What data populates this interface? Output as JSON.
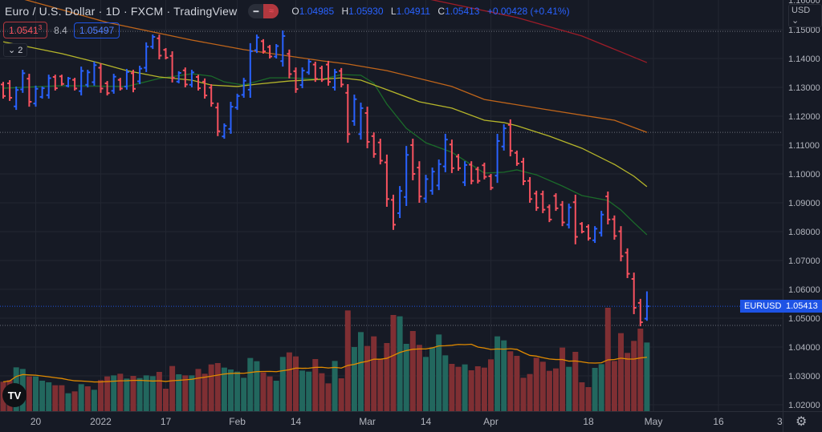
{
  "header": {
    "symbol_title": "Euro / U.S. Dollar · 1D · FXCM · TradingView",
    "toggle_left_icon": "minus-icon",
    "toggle_right_icon": "approx-icon",
    "ohlc": {
      "o_label": "O",
      "o": "1.04985",
      "h_label": "H",
      "h": "1.05930",
      "l_label": "L",
      "l": "1.04911",
      "c_label": "C",
      "c": "1.05413",
      "change": "+0.00428 (+0.41%)"
    }
  },
  "trade": {
    "bid": "1.0541",
    "bid_pip": "3",
    "spread": "8.4",
    "ask": "1.05497"
  },
  "indicators_toggle": {
    "icon": "chevron-down-icon",
    "count": "2"
  },
  "price_axis": {
    "currency": "USD",
    "top_partial": "1.16000",
    "ticks": [
      "1.15000",
      "1.14000",
      "1.13000",
      "1.12000",
      "1.11000",
      "1.10000",
      "1.09000",
      "1.08000",
      "1.07000",
      "1.06000",
      "1.05000",
      "1.04000",
      "1.03000",
      "1.02000"
    ]
  },
  "last_price_tag": {
    "symbol": "EURUSD",
    "price": "1.05413"
  },
  "time_axis": {
    "cut_label": "3"
  },
  "logo": "TV",
  "colors": {
    "background": "#161a25",
    "up": "#2962ff",
    "down": "#f7525f",
    "vol_up": "#22675e",
    "vol_down": "#7f2f33",
    "ma_green": "#1b6b2a",
    "ma_yellow": "#b5b52a",
    "ma_orange": "#c0651a",
    "ma_red": "#9c1c28",
    "vol_ma": "#e08a00",
    "grid": "#222631"
  },
  "chart_data": {
    "type": "ohlc",
    "interval": "1D",
    "ylim": [
      1.02,
      1.16
    ],
    "grid": true,
    "bar_format": [
      "open",
      "high",
      "low",
      "close"
    ],
    "bars": [
      [
        1.131,
        1.1319,
        1.1261,
        1.127
      ],
      [
        1.1314,
        1.1325,
        1.1253,
        1.1264
      ],
      [
        1.1234,
        1.1303,
        1.1222,
        1.1291
      ],
      [
        1.1293,
        1.1361,
        1.1281,
        1.1349
      ],
      [
        1.133,
        1.1347,
        1.1233,
        1.125
      ],
      [
        1.1244,
        1.1306,
        1.1233,
        1.1295
      ],
      [
        1.1267,
        1.1303,
        1.1261,
        1.1297
      ],
      [
        1.1273,
        1.1344,
        1.1261,
        1.1332
      ],
      [
        1.1336,
        1.1344,
        1.1289,
        1.1297
      ],
      [
        1.1338,
        1.1344,
        1.1306,
        1.1312
      ],
      [
        1.1305,
        1.1336,
        1.13,
        1.1331
      ],
      [
        1.1326,
        1.1333,
        1.1289,
        1.1296
      ],
      [
        1.1287,
        1.1372,
        1.1272,
        1.1357
      ],
      [
        1.1309,
        1.1361,
        1.13,
        1.1352
      ],
      [
        1.1318,
        1.1389,
        1.1306,
        1.1377
      ],
      [
        1.1368,
        1.1383,
        1.1281,
        1.1296
      ],
      [
        1.1314,
        1.1322,
        1.1272,
        1.128
      ],
      [
        1.1288,
        1.1347,
        1.1278,
        1.1337
      ],
      [
        1.1326,
        1.1333,
        1.1289,
        1.1296
      ],
      [
        1.1303,
        1.1364,
        1.1292,
        1.1353
      ],
      [
        1.1349,
        1.1361,
        1.1283,
        1.1295
      ],
      [
        1.1321,
        1.1375,
        1.1311,
        1.1365
      ],
      [
        1.1368,
        1.1456,
        1.1353,
        1.1441
      ],
      [
        1.1441,
        1.1483,
        1.1433,
        1.1475
      ],
      [
        1.147,
        1.1483,
        1.1397,
        1.141
      ],
      [
        1.143,
        1.1436,
        1.1397,
        1.1403
      ],
      [
        1.1409,
        1.1425,
        1.1317,
        1.1333
      ],
      [
        1.132,
        1.1356,
        1.1314,
        1.135
      ],
      [
        1.1359,
        1.1369,
        1.13,
        1.131
      ],
      [
        1.1309,
        1.1361,
        1.13,
        1.1352
      ],
      [
        1.1336,
        1.1344,
        1.1289,
        1.1297
      ],
      [
        1.132,
        1.1331,
        1.1261,
        1.1272
      ],
      [
        1.1299,
        1.1311,
        1.1233,
        1.1245
      ],
      [
        1.123,
        1.1247,
        1.1131,
        1.1148
      ],
      [
        1.113,
        1.1175,
        1.1122,
        1.1167
      ],
      [
        1.1156,
        1.125,
        1.1139,
        1.1233
      ],
      [
        1.123,
        1.1278,
        1.1222,
        1.127
      ],
      [
        1.1274,
        1.1333,
        1.1264,
        1.1323
      ],
      [
        1.1292,
        1.1453,
        1.1264,
        1.1425
      ],
      [
        1.1429,
        1.1483,
        1.1419,
        1.1473
      ],
      [
        1.146,
        1.1467,
        1.1417,
        1.1425
      ],
      [
        1.144,
        1.1447,
        1.14,
        1.1407
      ],
      [
        1.1407,
        1.145,
        1.14,
        1.1443
      ],
      [
        1.1391,
        1.1497,
        1.1372,
        1.1478
      ],
      [
        1.1416,
        1.1431,
        1.1331,
        1.1346
      ],
      [
        1.1356,
        1.1369,
        1.1281,
        1.1294
      ],
      [
        1.1308,
        1.1369,
        1.1297,
        1.1358
      ],
      [
        1.1352,
        1.1397,
        1.1344,
        1.1389
      ],
      [
        1.1379,
        1.1389,
        1.1319,
        1.133
      ],
      [
        1.1367,
        1.1375,
        1.1319,
        1.1327
      ],
      [
        1.1379,
        1.1392,
        1.1306,
        1.1319
      ],
      [
        1.13,
        1.1364,
        1.1289,
        1.1353
      ],
      [
        1.1357,
        1.1367,
        1.13,
        1.131
      ],
      [
        1.1281,
        1.1311,
        1.1108,
        1.1138
      ],
      [
        1.1183,
        1.1275,
        1.1167,
        1.1259
      ],
      [
        1.1138,
        1.1247,
        1.1119,
        1.1228
      ],
      [
        1.1211,
        1.1233,
        1.1089,
        1.1111
      ],
      [
        1.1131,
        1.1144,
        1.1056,
        1.1069
      ],
      [
        1.1109,
        1.1122,
        1.1033,
        1.1046
      ],
      [
        1.104,
        1.1067,
        1.0886,
        1.0913
      ],
      [
        1.091,
        1.0928,
        1.0806,
        1.0824
      ],
      [
        1.0864,
        1.0958,
        1.0847,
        1.0941
      ],
      [
        1.092,
        1.1097,
        1.0889,
        1.1066
      ],
      [
        1.11,
        1.1122,
        1.0978,
        1.1
      ],
      [
        1.1022,
        1.1044,
        1.09,
        1.0922
      ],
      [
        1.0915,
        1.0997,
        1.09,
        1.0982
      ],
      [
        1.0942,
        1.1022,
        1.0928,
        1.1008
      ],
      [
        1.096,
        1.105,
        1.0944,
        1.1034
      ],
      [
        1.1026,
        1.1139,
        1.1006,
        1.1119
      ],
      [
        1.1102,
        1.1119,
        1.1003,
        1.102
      ],
      [
        1.106,
        1.1069,
        1.1011,
        1.102
      ],
      [
        1.0971,
        1.1044,
        1.0958,
        1.1031
      ],
      [
        1.1032,
        1.1044,
        1.0964,
        1.0976
      ],
      [
        1.1016,
        1.1025,
        1.0967,
        1.0976
      ],
      [
        1.103,
        1.1039,
        1.0981,
        1.099
      ],
      [
        1.0992,
        1.1,
        1.0944,
        1.0952
      ],
      [
        1.0994,
        1.1139,
        1.0969,
        1.1114
      ],
      [
        1.1095,
        1.1172,
        1.1081,
        1.1158
      ],
      [
        1.117,
        1.1189,
        1.1061,
        1.108
      ],
      [
        1.1073,
        1.1081,
        1.1028,
        1.1036
      ],
      [
        1.1042,
        1.1056,
        1.0961,
        1.0975
      ],
      [
        1.0976,
        1.0989,
        1.09,
        1.0913
      ],
      [
        1.0932,
        1.0942,
        1.0872,
        1.0883
      ],
      [
        1.093,
        1.0942,
        1.0864,
        1.0876
      ],
      [
        1.0885,
        1.0894,
        1.0833,
        1.0842
      ],
      [
        1.0924,
        1.0933,
        1.0872,
        1.0881
      ],
      [
        1.0893,
        1.0906,
        1.0819,
        1.0832
      ],
      [
        1.0824,
        1.0897,
        1.0811,
        1.0884
      ],
      [
        1.0902,
        1.0928,
        1.0756,
        1.0782
      ],
      [
        1.0827,
        1.0833,
        1.0794,
        1.08
      ],
      [
        1.0817,
        1.0825,
        1.0769,
        1.0777
      ],
      [
        1.077,
        1.0819,
        1.0761,
        1.081
      ],
      [
        1.0796,
        1.0872,
        1.0783,
        1.0859
      ],
      [
        1.0922,
        1.0939,
        1.0825,
        1.0842
      ],
      [
        1.0843,
        1.0856,
        1.0772,
        1.0785
      ],
      [
        1.0801,
        1.0819,
        1.0697,
        1.0715
      ],
      [
        1.0727,
        1.0742,
        1.0639,
        1.0654
      ],
      [
        1.0636,
        1.0658,
        1.0514,
        1.0536
      ],
      [
        1.0553,
        1.0567,
        1.0472,
        1.0486
      ],
      [
        1.04985,
        1.0593,
        1.04911,
        1.05413
      ]
    ],
    "volume_relative": [
      110,
      116,
      164,
      158,
      130,
      130,
      114,
      108,
      97,
      97,
      67,
      74,
      101,
      93,
      80,
      116,
      130,
      134,
      140,
      122,
      132,
      124,
      134,
      131,
      147,
      84,
      169,
      138,
      134,
      134,
      158,
      140,
      175,
      180,
      163,
      156,
      148,
      125,
      199,
      187,
      145,
      130,
      114,
      203,
      220,
      205,
      152,
      148,
      195,
      142,
      104,
      188,
      123,
      377,
      240,
      296,
      244,
      280,
      195,
      255,
      360,
      355,
      252,
      300,
      248,
      203,
      238,
      287,
      209,
      177,
      166,
      175,
      153,
      168,
      163,
      194,
      280,
      265,
      224,
      207,
      125,
      139,
      200,
      185,
      151,
      160,
      238,
      166,
      222,
      108,
      90,
      162,
      176,
      387,
      188,
      292,
      218,
      263,
      309,
      257
    ],
    "volume_colors": [
      "down",
      "down",
      "up",
      "up",
      "down",
      "up",
      "up",
      "up",
      "down",
      "down",
      "up",
      "down",
      "up",
      "down",
      "up",
      "down",
      "down",
      "up",
      "down",
      "up",
      "down",
      "up",
      "up",
      "up",
      "down",
      "down",
      "down",
      "up",
      "down",
      "up",
      "down",
      "down",
      "down",
      "down",
      "up",
      "up",
      "up",
      "up",
      "up",
      "up",
      "down",
      "down",
      "up",
      "up",
      "down",
      "down",
      "up",
      "up",
      "down",
      "down",
      "down",
      "up",
      "down",
      "down",
      "up",
      "up",
      "down",
      "down",
      "down",
      "down",
      "down",
      "up",
      "up",
      "down",
      "down",
      "up",
      "up",
      "up",
      "up",
      "down",
      "down",
      "up",
      "down",
      "down",
      "down",
      "down",
      "up",
      "up",
      "down",
      "down",
      "down",
      "down",
      "down",
      "down",
      "down",
      "down",
      "down",
      "up",
      "down",
      "down",
      "down",
      "up",
      "up",
      "down",
      "down",
      "down",
      "down",
      "down",
      "down",
      "up"
    ],
    "moving_averages": [
      {
        "color": "green",
        "points": [
          [
            1,
            1.1297
          ],
          [
            10,
            1.1306
          ],
          [
            20,
            1.1303
          ],
          [
            25,
            1.1331
          ],
          [
            30,
            1.1347
          ],
          [
            33,
            1.1339
          ],
          [
            35,
            1.1319
          ],
          [
            38,
            1.1308
          ],
          [
            42,
            1.1333
          ],
          [
            45,
            1.1333
          ],
          [
            50,
            1.1328
          ],
          [
            53,
            1.1344
          ],
          [
            56,
            1.1342
          ],
          [
            58,
            1.1314
          ],
          [
            60,
            1.1242
          ],
          [
            63,
            1.1158
          ],
          [
            66,
            1.1108
          ],
          [
            70,
            1.1075
          ],
          [
            75,
            1.1003
          ],
          [
            78,
            1.1006
          ],
          [
            80,
            1.1014
          ],
          [
            83,
            1.0997
          ],
          [
            87,
            1.0958
          ],
          [
            90,
            1.0925
          ],
          [
            94,
            1.0908
          ],
          [
            96,
            1.0875
          ],
          [
            98,
            1.0831
          ],
          [
            100,
            1.0789
          ]
        ]
      },
      {
        "color": "yellow",
        "points": [
          [
            1,
            1.1458
          ],
          [
            10,
            1.1417
          ],
          [
            15,
            1.1389
          ],
          [
            20,
            1.1358
          ],
          [
            25,
            1.1336
          ],
          [
            30,
            1.1325
          ],
          [
            33,
            1.1308
          ],
          [
            37,
            1.1303
          ],
          [
            40,
            1.1311
          ],
          [
            45,
            1.1322
          ],
          [
            50,
            1.1328
          ],
          [
            53,
            1.1333
          ],
          [
            56,
            1.1325
          ],
          [
            60,
            1.1292
          ],
          [
            65,
            1.125
          ],
          [
            70,
            1.1228
          ],
          [
            75,
            1.1186
          ],
          [
            78,
            1.1178
          ],
          [
            80,
            1.1167
          ],
          [
            85,
            1.1131
          ],
          [
            90,
            1.1089
          ],
          [
            95,
            1.1033
          ],
          [
            98,
            1.0992
          ],
          [
            100,
            1.0956
          ]
        ]
      },
      {
        "color": "orange",
        "points": [
          [
            1,
            1.1625
          ],
          [
            10,
            1.1569
          ],
          [
            17,
            1.1525
          ],
          [
            30,
            1.1464
          ],
          [
            38,
            1.1431
          ],
          [
            50,
            1.1392
          ],
          [
            54,
            1.1381
          ],
          [
            60,
            1.1358
          ],
          [
            70,
            1.1303
          ],
          [
            75,
            1.1258
          ],
          [
            84,
            1.1225
          ],
          [
            95,
            1.1186
          ],
          [
            100,
            1.1144
          ]
        ]
      },
      {
        "color": "red",
        "points": [
          [
            66,
            1.1608
          ],
          [
            80,
            1.1542
          ],
          [
            90,
            1.1478
          ],
          [
            100,
            1.1386
          ]
        ]
      }
    ],
    "price_lines": [
      1.1494,
      1.1144,
      1.0475
    ],
    "x_ticks": [
      {
        "bar": 6,
        "label": "20"
      },
      {
        "bar": 16,
        "label": "2022"
      },
      {
        "bar": 26,
        "label": "17"
      },
      {
        "bar": 37,
        "label": "Feb"
      },
      {
        "bar": 46,
        "label": "14"
      },
      {
        "bar": 57,
        "label": "Mar"
      },
      {
        "bar": 66,
        "label": "14"
      },
      {
        "bar": 76,
        "label": "Apr"
      },
      {
        "bar": 91,
        "label": "18"
      },
      {
        "bar": 101,
        "label": "May"
      },
      {
        "bar": 111,
        "label": "16"
      }
    ]
  }
}
